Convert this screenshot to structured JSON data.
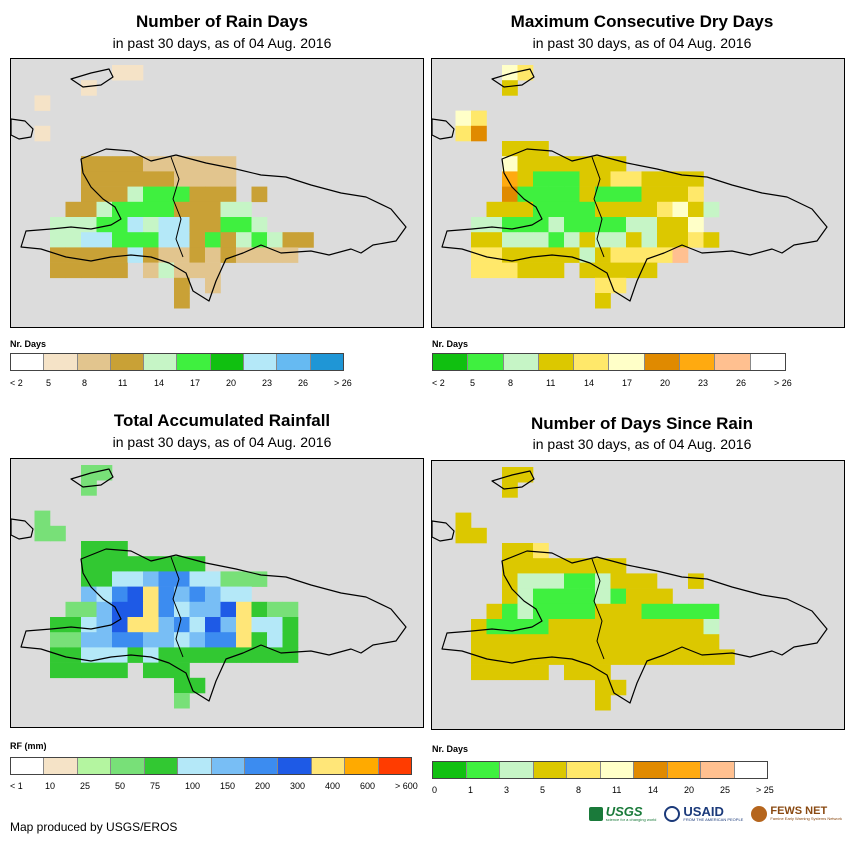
{
  "panels": [
    {
      "id": "rain_days",
      "title": "Number of Rain Days",
      "subtitle": "in past 30 days, as of 04 Aug. 2016",
      "legend_title": "Nr. Days",
      "legend_ticks": [
        "< 2",
        "5",
        "8",
        "11",
        "14",
        "17",
        "20",
        "23",
        "26",
        "> 26"
      ],
      "legend_colors": [
        "#ffffff",
        "#f5e3c7",
        "#e2c58e",
        "#c9a136",
        "#c6f5c6",
        "#3ff03f",
        "#10c010",
        "#b4e8f8",
        "#66baf2",
        "#1f96d6"
      ],
      "grid": [
        "......11.........",
        "....1...........",
        ".1..............",
        "..........",
        ".1.................",
        "..............",
        "....3333222222......",
        "....3333332222.....",
        "....3334555333.3...",
        "...334555533344.....",
        "..44455747733554....",
        "..44775557735345433.",
        "..3333373223232222..",
        "..33333.24222.....",
        "..........3.2......",
        "..........3........"
      ]
    },
    {
      "id": "max_dry_days",
      "title": "Maximum Consecutive Dry Days",
      "subtitle": "in past 30 days, as of 04 Aug. 2016",
      "legend_title": "Nr. Days",
      "legend_ticks": [
        "< 2",
        "5",
        "8",
        "11",
        "14",
        "17",
        "20",
        "23",
        "26",
        "> 26"
      ],
      "legend_colors": [
        "#10c010",
        "#3ff03f",
        "#c6f5c6",
        "#dcc800",
        "#ffe86a",
        "#ffffc8",
        "#e08a00",
        "#ffaa10",
        "#ffc090",
        "#ffffff"
      ],
      "grid": [
        "....54..........",
        "....3...........",
        "..........",
        ".54.............",
        ".46.......",
        "....333.........",
        "....53333333.....",
        "....7311133443333..",
        "....6111131113334..",
        "...333111133334532..",
        "..221112111122335...",
        "..3322212322323343.",
        "..44333332344448...",
        "..444333.33333.....",
        "..........44.......",
        "..........3........"
      ]
    },
    {
      "id": "total_rainfall",
      "title": "Total Accumulated Rainfall",
      "subtitle": "in past 30 days, as of 04 Aug. 2016",
      "legend_title": "RF (mm)",
      "legend_ticks": [
        "< 1",
        "10",
        "25",
        "50",
        "75",
        "100",
        "150",
        "200",
        "300",
        "400",
        "600",
        "> 600"
      ],
      "legend_colors": [
        "#ffffff",
        "#f5e3c7",
        "#b4f5a0",
        "#78e078",
        "#32c832",
        "#b4e8f8",
        "#78bef5",
        "#3c8cf0",
        "#1e5ae6",
        "#ffe678",
        "#ffaa00",
        "#ff3c00"
      ],
      "grid": [
        "....33..........",
        "....3...........",
        "..........",
        ".3..............",
        ".33.......",
        "....444.........",
        "....44444444.....",
        "....445567755333...",
        "....65789767655....",
        "...336889756689433..",
        "..4456899675869554..",
        "..3366776656779454.",
        "..4455545444444444.",
        "..44444.444.........",
        "..........44.......",
        "..........3........"
      ]
    },
    {
      "id": "days_since_rain",
      "title": "Number of Days Since Rain",
      "subtitle": "in past 30 days, as of 04 Aug. 2016",
      "legend_title": "Nr. Days",
      "legend_ticks": [
        "0",
        "1",
        "3",
        "5",
        "8",
        "11",
        "14",
        "20",
        "25",
        "> 25"
      ],
      "legend_colors": [
        "#10c010",
        "#3ff03f",
        "#c6f5c6",
        "#dcc800",
        "#ffe86a",
        "#ffffc8",
        "#e08a00",
        "#ffaa10",
        "#ffc090",
        "#ffffff"
      ],
      "grid": [
        "....33..........",
        "....3...........",
        "..........",
        ".3..............",
        ".33.......",
        "....334.........",
        "....33333333.....",
        "....3222112333..3..",
        "....32111121333....",
        "...312111133311111..",
        "..3111133333333332..",
        "..3333333333333333.",
        "..33333333333333333.",
        "..33333.333.........",
        "..........33.......",
        "..........3........"
      ]
    }
  ],
  "credit": "Map produced by USGS/EROS",
  "logos": {
    "usgs": "USGS",
    "usgs_tagline": "science for a changing world",
    "usaid": "USAID",
    "usaid_tagline": "FROM THE AMERICAN PEOPLE",
    "fews": "FEWS NET",
    "fews_tagline": "Famine Early Warning Systems Network"
  }
}
